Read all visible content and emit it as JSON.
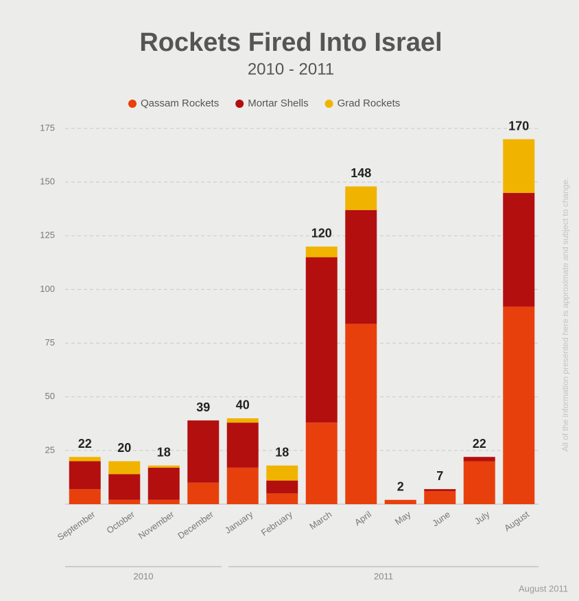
{
  "chart_data": {
    "type": "stacked_bar",
    "title": "Rockets Fired Into Israel",
    "subtitle": "2010 - 2011",
    "categories": [
      "September",
      "October",
      "November",
      "December",
      "January",
      "February",
      "March",
      "April",
      "May",
      "June",
      "July",
      "August"
    ],
    "series": [
      {
        "name": "Qassam Rockets",
        "color": "#e8400c",
        "values": [
          7,
          2,
          2,
          10,
          17,
          5,
          38,
          84,
          2,
          6,
          20,
          92
        ]
      },
      {
        "name": "Mortar Shells",
        "color": "#b30f0f",
        "values": [
          13,
          12,
          15,
          29,
          21,
          6,
          77,
          53,
          0,
          1,
          2,
          53
        ]
      },
      {
        "name": "Grad Rockets",
        "color": "#f0b400",
        "values": [
          2,
          6,
          1,
          0,
          2,
          7,
          5,
          11,
          0,
          0,
          0,
          25
        ]
      }
    ],
    "totals": [
      22,
      20,
      18,
      39,
      40,
      18,
      120,
      148,
      2,
      7,
      22,
      170
    ],
    "groups": [
      "2010",
      "2011"
    ],
    "ylim": [
      0,
      175
    ],
    "yticks": [
      25,
      50,
      75,
      100,
      125,
      150,
      175
    ],
    "grid": true,
    "side_note": "All of the information presented here is approximate and subject to change.",
    "footer": "August 2011"
  }
}
